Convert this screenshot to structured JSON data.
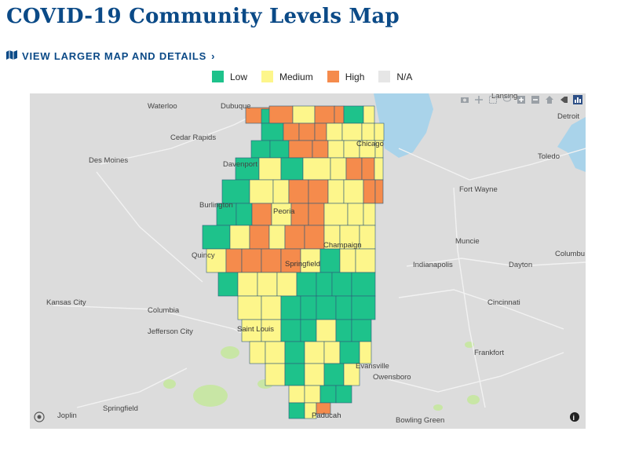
{
  "page": {
    "title": "COVID-19 Community Levels Map",
    "details_link": "VIEW LARGER MAP AND DETAILS"
  },
  "legend": [
    {
      "label": "Low",
      "color": "#1ec28b"
    },
    {
      "label": "Medium",
      "color": "#fdf68b"
    },
    {
      "label": "High",
      "color": "#f58b4c"
    },
    {
      "label": "N/A",
      "color": "#e6e6e6"
    }
  ],
  "map": {
    "illinois_label": "Lansing",
    "cities": {
      "waterloo": "Waterloo",
      "dubuque": "Dubuque",
      "cedar_rapids": "Cedar Rapids",
      "des_moines": "Des Moines",
      "davenport": "Davenport",
      "burlington": "Burlington",
      "quincy": "Quincy",
      "kansas_city": "Kansas City",
      "columbia": "Columbia",
      "jefferson_city": "Jefferson City",
      "joplin": "Joplin",
      "springfield_mo": "Springfield",
      "chicago": "Chicago",
      "peoria": "Peoria",
      "springfield_il": "Springfield",
      "champaign": "Champaign",
      "saint_louis": "Saint Louis",
      "evansville": "Evansville",
      "owensboro": "Owensboro",
      "paducah": "Paducah",
      "bowling_green": "Bowling Green",
      "detroit": "Detroit",
      "toledo": "Toledo",
      "fort_wayne": "Fort Wayne",
      "muncie": "Muncie",
      "indianapolis": "Indianapolis",
      "dayton": "Dayton",
      "columbus": "Columbu",
      "cincinnati": "Cincinnati",
      "frankfort": "Frankfort",
      "lansing": "Lansing"
    },
    "toolbar_icons": [
      "camera-icon",
      "pan-icon",
      "box-select-icon",
      "lasso-icon",
      "zoom-in-icon",
      "zoom-out-icon",
      "home-icon",
      "reset-icon",
      "bar-chart-icon"
    ]
  }
}
